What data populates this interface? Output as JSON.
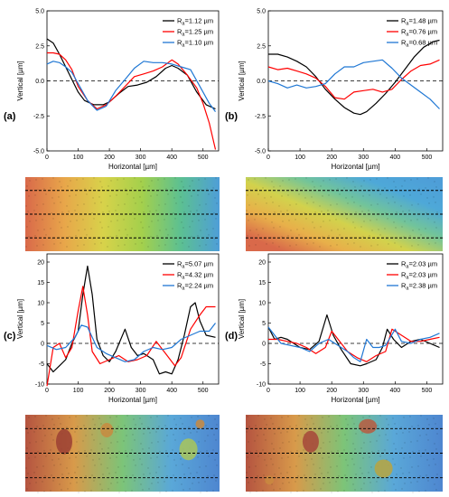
{
  "figure": {
    "panels": [
      {
        "letter": "(a)",
        "xlabel": "Horizontal [µm]",
        "ylabel": "Vertical [µm]"
      },
      {
        "letter": "(b)",
        "xlabel": "Horizontal [µm]",
        "ylabel": "Vertical [µm]"
      },
      {
        "letter": "(c)",
        "xlabel": "Horizontal [µm]",
        "ylabel": "Vertical [µm]"
      },
      {
        "letter": "(d)",
        "xlabel": "Horizontal [µm]",
        "ylabel": "Vertical [µm]"
      }
    ]
  },
  "chart_data": [
    {
      "type": "line",
      "panel": "(a)",
      "xlabel": "Horizontal [µm]",
      "ylabel": "Vertical [µm]",
      "xlim": [
        0,
        550
      ],
      "ylim": [
        -5,
        5
      ],
      "x_ticks": [
        "0",
        "100",
        "200",
        "300",
        "400",
        "500"
      ],
      "y_ticks": [
        "-5.0",
        "-2.5",
        "0.0",
        "2.5",
        "5.0"
      ],
      "legend_position": "top-right",
      "reference_line": 0,
      "series": [
        {
          "name": "Ra=1.12 µm",
          "color": "#000000",
          "x": [
            0,
            20,
            40,
            60,
            80,
            100,
            120,
            150,
            180,
            200,
            230,
            260,
            290,
            320,
            350,
            380,
            400,
            420,
            450,
            480,
            510,
            540
          ],
          "y": [
            3.0,
            2.7,
            1.9,
            1.0,
            0.1,
            -0.8,
            -1.4,
            -1.7,
            -1.7,
            -1.5,
            -0.9,
            -0.4,
            -0.3,
            -0.1,
            0.3,
            0.9,
            1.1,
            0.9,
            0.4,
            -0.8,
            -1.7,
            -2.0
          ]
        },
        {
          "name": "Ra=1.25 µm",
          "color": "#ff0000",
          "x": [
            0,
            20,
            40,
            60,
            80,
            100,
            130,
            160,
            190,
            220,
            250,
            280,
            310,
            340,
            370,
            400,
            420,
            450,
            480,
            500,
            520,
            540
          ],
          "y": [
            2.0,
            2.0,
            1.9,
            1.5,
            0.8,
            -0.4,
            -1.4,
            -2.0,
            -1.7,
            -1.1,
            -0.4,
            0.3,
            0.5,
            0.7,
            1.0,
            1.5,
            1.2,
            0.4,
            -0.5,
            -1.6,
            -3.0,
            -4.9
          ]
        },
        {
          "name": "Ra=1.10 µm",
          "color": "#1f77d4",
          "x": [
            0,
            20,
            40,
            60,
            80,
            100,
            130,
            160,
            190,
            220,
            250,
            280,
            310,
            340,
            370,
            400,
            430,
            460,
            490,
            520,
            540
          ],
          "y": [
            1.2,
            1.4,
            1.3,
            1.0,
            0.6,
            -0.2,
            -1.4,
            -2.1,
            -1.8,
            -0.7,
            0.1,
            0.9,
            1.4,
            1.3,
            1.3,
            1.2,
            1.0,
            0.8,
            -0.4,
            -1.6,
            -2.2
          ]
        }
      ]
    },
    {
      "type": "line",
      "panel": "(b)",
      "xlabel": "Horizontal [µm]",
      "ylabel": "Vertical [µm]",
      "xlim": [
        0,
        550
      ],
      "ylim": [
        -5,
        5
      ],
      "x_ticks": [
        "0",
        "100",
        "200",
        "300",
        "400",
        "500"
      ],
      "y_ticks": [
        "-5.0",
        "-2.5",
        "0.0",
        "2.5",
        "5.0"
      ],
      "legend_position": "top-right",
      "reference_line": 0,
      "series": [
        {
          "name": "Ra=1.48 µm",
          "color": "#000000",
          "x": [
            0,
            30,
            60,
            90,
            120,
            150,
            180,
            210,
            240,
            270,
            290,
            310,
            340,
            370,
            400,
            430,
            460,
            490,
            520,
            540
          ],
          "y": [
            1.9,
            1.9,
            1.7,
            1.4,
            1.0,
            0.3,
            -0.6,
            -1.3,
            -1.9,
            -2.3,
            -2.4,
            -2.2,
            -1.6,
            -0.9,
            -0.1,
            0.8,
            1.7,
            2.4,
            2.8,
            2.9
          ]
        },
        {
          "name": "Ra=0.76 µm",
          "color": "#ff0000",
          "x": [
            0,
            30,
            60,
            90,
            120,
            150,
            180,
            210,
            240,
            270,
            300,
            330,
            360,
            390,
            420,
            450,
            480,
            510,
            540
          ],
          "y": [
            1.0,
            0.8,
            0.9,
            0.7,
            0.5,
            0.2,
            -0.4,
            -1.2,
            -1.3,
            -0.8,
            -0.7,
            -0.6,
            -0.8,
            -0.6,
            0.1,
            0.7,
            1.1,
            1.2,
            1.5
          ]
        },
        {
          "name": "Ra=0.68 µm",
          "color": "#1f77d4",
          "x": [
            0,
            30,
            60,
            90,
            120,
            150,
            180,
            210,
            240,
            270,
            300,
            330,
            360,
            390,
            420,
            450,
            480,
            510,
            540
          ],
          "y": [
            0.0,
            -0.2,
            -0.5,
            -0.3,
            -0.5,
            -0.4,
            -0.2,
            0.5,
            1.0,
            1.0,
            1.3,
            1.4,
            1.5,
            0.9,
            0.2,
            -0.3,
            -0.8,
            -1.3,
            -2.0
          ]
        }
      ]
    },
    {
      "type": "line",
      "panel": "(c)",
      "xlabel": "Horizontal [µm]",
      "ylabel": "Vertical [µm]",
      "xlim": [
        0,
        550
      ],
      "ylim": [
        -10,
        22
      ],
      "x_ticks": [
        "0",
        "100",
        "200",
        "300",
        "400",
        "500"
      ],
      "y_ticks": [
        "-10",
        "-5",
        "0",
        "5",
        "10",
        "15",
        "20"
      ],
      "legend_position": "top-right",
      "reference_line": 0,
      "series": [
        {
          "name": "Ra=5.07 µm",
          "color": "#000000",
          "x": [
            0,
            20,
            40,
            60,
            80,
            100,
            115,
            130,
            145,
            160,
            180,
            200,
            220,
            250,
            270,
            290,
            310,
            340,
            360,
            380,
            400,
            420,
            440,
            460,
            475,
            490,
            510,
            540
          ],
          "y": [
            -5.0,
            -7.0,
            -5.5,
            -4.0,
            0.0,
            3.0,
            12.0,
            19.0,
            12.0,
            1.0,
            -3.0,
            -4.5,
            -2.0,
            3.5,
            -1.0,
            -3.0,
            -2.5,
            -4.0,
            -7.5,
            -7.0,
            -7.5,
            -4.0,
            2.0,
            9.0,
            10.0,
            5.5,
            2.0,
            1.5
          ]
        },
        {
          "name": "Ra=4.32 µm",
          "color": "#ff0000",
          "x": [
            0,
            20,
            40,
            60,
            80,
            100,
            115,
            130,
            145,
            170,
            200,
            230,
            260,
            290,
            320,
            350,
            380,
            410,
            430,
            460,
            490,
            510,
            540
          ],
          "y": [
            -10.5,
            -1.0,
            0.0,
            -3.5,
            -1.0,
            8.0,
            14.0,
            7.0,
            -2.0,
            -5.0,
            -4.0,
            -3.0,
            -4.5,
            -4.0,
            -3.0,
            0.5,
            -2.5,
            -5.5,
            -3.5,
            3.5,
            7.0,
            9.0,
            9.0
          ]
        },
        {
          "name": "Ra=2.24 µm",
          "color": "#1f77d4",
          "x": [
            0,
            30,
            60,
            90,
            110,
            130,
            160,
            190,
            220,
            250,
            280,
            310,
            340,
            370,
            400,
            430,
            460,
            490,
            520,
            540
          ],
          "y": [
            -0.5,
            -1.5,
            -1.0,
            1.5,
            4.5,
            4.0,
            -1.0,
            -2.5,
            -3.5,
            -4.5,
            -4.0,
            -2.0,
            -1.0,
            -1.5,
            -1.0,
            1.0,
            2.0,
            3.0,
            3.0,
            5.0
          ]
        }
      ]
    },
    {
      "type": "line",
      "panel": "(d)",
      "xlabel": "Horizontal [µm]",
      "ylabel": "Vertical [µm]",
      "xlim": [
        0,
        550
      ],
      "ylim": [
        -10,
        22
      ],
      "x_ticks": [
        "0",
        "100",
        "200",
        "300",
        "400",
        "500"
      ],
      "y_ticks": [
        "-10",
        "-5",
        "0",
        "5",
        "10",
        "15",
        "20"
      ],
      "legend_position": "top-right",
      "reference_line": 0,
      "series": [
        {
          "name": "Ra=2.03 µm",
          "color": "#000000",
          "x": [
            0,
            20,
            40,
            60,
            80,
            100,
            130,
            160,
            185,
            205,
            230,
            260,
            290,
            310,
            340,
            360,
            375,
            395,
            420,
            450,
            480,
            510,
            540
          ],
          "y": [
            4.0,
            1.0,
            1.5,
            1.0,
            0.0,
            -1.0,
            -1.5,
            0.5,
            7.0,
            2.0,
            -1.5,
            -5.0,
            -5.5,
            -5.0,
            -4.0,
            -1.0,
            3.5,
            1.0,
            -1.0,
            0.5,
            1.0,
            0.0,
            -1.0
          ]
        },
        {
          "name": "Ra=2.03 µm",
          "color": "#ff0000",
          "x": [
            0,
            30,
            60,
            90,
            120,
            150,
            180,
            200,
            220,
            250,
            280,
            310,
            340,
            370,
            390,
            420,
            450,
            480,
            510,
            540
          ],
          "y": [
            1.0,
            1.0,
            0.5,
            0.0,
            -1.0,
            -2.5,
            -1.0,
            3.0,
            1.0,
            -2.0,
            -3.5,
            -4.5,
            -3.0,
            -2.0,
            3.5,
            2.0,
            0.5,
            0.5,
            1.0,
            1.5
          ]
        },
        {
          "name": "Ra=2.38 µm",
          "color": "#1f77d4",
          "x": [
            0,
            20,
            40,
            70,
            100,
            130,
            160,
            190,
            220,
            250,
            270,
            290,
            310,
            330,
            350,
            370,
            400,
            420,
            450,
            480,
            510,
            540
          ],
          "y": [
            4.0,
            2.0,
            0.0,
            -0.5,
            -1.0,
            -2.0,
            0.0,
            1.0,
            -0.5,
            -2.0,
            -3.5,
            -4.5,
            1.0,
            -1.0,
            -1.0,
            -0.5,
            3.5,
            0.5,
            0.0,
            1.0,
            1.5,
            2.5
          ]
        }
      ]
    }
  ],
  "surface_maps": [
    {
      "panel": "(a)",
      "colors": [
        "#d9694a",
        "#e8a64a",
        "#d8d24a",
        "#a4d04c",
        "#5cc092",
        "#4e9ed8"
      ]
    },
    {
      "panel": "(b)",
      "colors": [
        "#d9694a",
        "#e8b04a",
        "#d2d24c",
        "#72c49a",
        "#4ea8d8",
        "#4e9ed8"
      ]
    },
    {
      "panel": "(c)",
      "colors": [
        "#b55440",
        "#d89a4a",
        "#7cc478",
        "#5aa8d8",
        "#4e86d0"
      ]
    },
    {
      "panel": "(d)",
      "colors": [
        "#b55440",
        "#d89a4a",
        "#7cc478",
        "#5aa8d8",
        "#4e86d0"
      ]
    }
  ]
}
